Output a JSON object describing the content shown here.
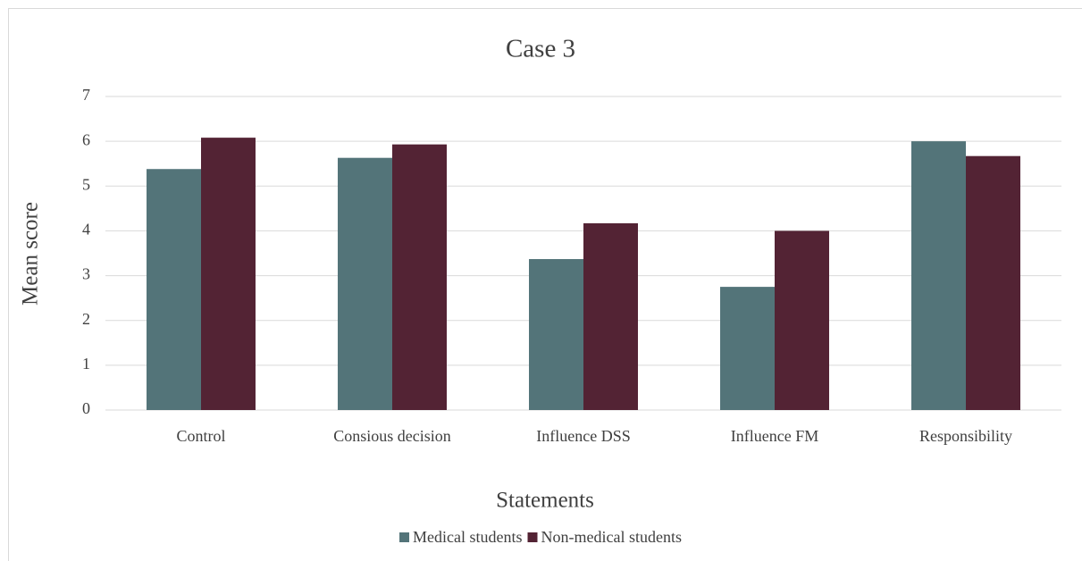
{
  "chart_data": {
    "type": "bar",
    "title": "Case 3",
    "x_label": "Statements",
    "y_label": "Mean score",
    "categories": [
      "Control",
      "Consious decision",
      "Influence DSS",
      "Influence FM",
      "Responsibility"
    ],
    "series": [
      {
        "name": "Medical students",
        "color": "#537479",
        "values": [
          5.38,
          5.63,
          3.37,
          2.75,
          6.0
        ]
      },
      {
        "name": "Non-medical students",
        "color": "#532334",
        "values": [
          6.08,
          5.93,
          4.17,
          4.0,
          5.67
        ]
      }
    ],
    "ylim": [
      0,
      7
    ],
    "yticks": [
      0,
      1,
      2,
      3,
      4,
      5,
      6,
      7
    ],
    "grid": true,
    "legend": "bottom"
  }
}
